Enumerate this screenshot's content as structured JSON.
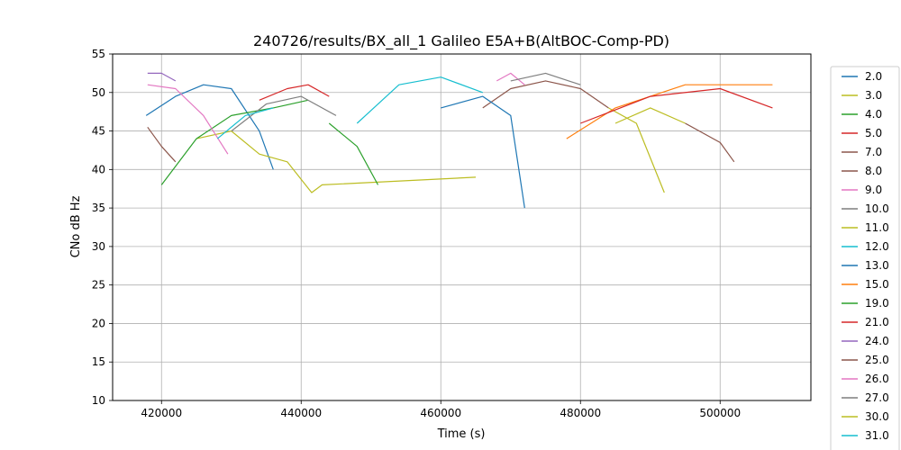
{
  "chart_data": {
    "type": "line",
    "title": "240726/results/BX_all_1 Galileo E5A+B(AltBOC-Comp-PD)",
    "xlabel": "Time (s)",
    "ylabel": "CNo dB Hz",
    "xlim": [
      413000,
      513000
    ],
    "ylim": [
      10,
      55
    ],
    "xticks": [
      420000,
      440000,
      460000,
      480000,
      500000
    ],
    "yticks": [
      10,
      15,
      20,
      25,
      30,
      35,
      40,
      45,
      50,
      55
    ],
    "grid": true,
    "legend_position": "right-outside",
    "series": [
      {
        "name": "2.0",
        "color": "#1f77b4",
        "x": [
          417800,
          422000,
          426000,
          430000,
          434000,
          436000
        ],
        "y": [
          47,
          49.5,
          51,
          50.5,
          45,
          40
        ]
      },
      {
        "name": "3.0",
        "color": "#bcbd22",
        "x": [
          425000,
          430000,
          434000,
          438000,
          441500,
          443000,
          465000
        ],
        "y": [
          44,
          45,
          42,
          41,
          37,
          38,
          39
        ]
      },
      {
        "name": "4.0",
        "color": "#2ca02c",
        "x": [
          420000,
          425000,
          430000,
          436000,
          441000
        ],
        "y": [
          38,
          44,
          47,
          48,
          49
        ]
      },
      {
        "name": "5.0",
        "color": "#d62728",
        "x": [
          434000,
          438000,
          441000,
          444000
        ],
        "y": [
          49,
          50.5,
          51,
          49.5
        ]
      },
      {
        "name": "7.0",
        "color": "#8c564b",
        "x": [
          466000,
          470000,
          475000,
          480000,
          484000
        ],
        "y": [
          48,
          50.5,
          51.5,
          50.5,
          48
        ]
      },
      {
        "name": "8.0",
        "color": "#8c564b",
        "x": [
          418000,
          420000,
          422000
        ],
        "y": [
          45.5,
          43,
          41
        ]
      },
      {
        "name": "9.0",
        "color": "#e377c2",
        "x": [
          418000,
          422000,
          426000,
          429500
        ],
        "y": [
          51,
          50.5,
          47,
          42
        ]
      },
      {
        "name": "10.0",
        "color": "#7f7f7f",
        "x": [
          430000,
          435000,
          440000,
          445000
        ],
        "y": [
          45,
          48.5,
          49.5,
          47
        ]
      },
      {
        "name": "11.0",
        "color": "#bcbd22",
        "x": [
          484000,
          488000,
          492000
        ],
        "y": [
          48,
          46,
          37
        ]
      },
      {
        "name": "12.0",
        "color": "#17becf",
        "x": [
          428000,
          432000,
          436000
        ],
        "y": [
          44,
          47,
          48
        ]
      },
      {
        "name": "13.0",
        "color": "#1f77b4",
        "x": [
          460000,
          466000,
          470000,
          472000
        ],
        "y": [
          48,
          49.5,
          47,
          35
        ]
      },
      {
        "name": "15.0",
        "color": "#ff7f0e",
        "x": [
          478000,
          485000,
          495000,
          507500
        ],
        "y": [
          44,
          48,
          51,
          51
        ]
      },
      {
        "name": "19.0",
        "color": "#2ca02c",
        "x": [
          444000,
          448000,
          451000
        ],
        "y": [
          46,
          43,
          38
        ]
      },
      {
        "name": "21.0",
        "color": "#d62728",
        "x": [
          480000,
          490000,
          500000,
          507500
        ],
        "y": [
          46,
          49.5,
          50.5,
          48
        ]
      },
      {
        "name": "24.0",
        "color": "#9467bd",
        "x": [
          418000,
          420000,
          422000
        ],
        "y": [
          52.5,
          52.5,
          51.5
        ]
      },
      {
        "name": "25.0",
        "color": "#8c564b",
        "x": [
          495000,
          500000,
          502000
        ],
        "y": [
          46,
          43.5,
          41
        ]
      },
      {
        "name": "26.0",
        "color": "#e377c2",
        "x": [
          468000,
          470000,
          472000
        ],
        "y": [
          51.5,
          52.5,
          51
        ]
      },
      {
        "name": "27.0",
        "color": "#7f7f7f",
        "x": [
          470000,
          475000,
          480000
        ],
        "y": [
          51.5,
          52.5,
          51
        ]
      },
      {
        "name": "30.0",
        "color": "#bcbd22",
        "x": [
          485000,
          490000,
          495000
        ],
        "y": [
          46,
          48,
          46
        ]
      },
      {
        "name": "31.0",
        "color": "#17becf",
        "x": [
          448000,
          454000,
          460000,
          466000
        ],
        "y": [
          46,
          51,
          52,
          50
        ]
      }
    ]
  }
}
